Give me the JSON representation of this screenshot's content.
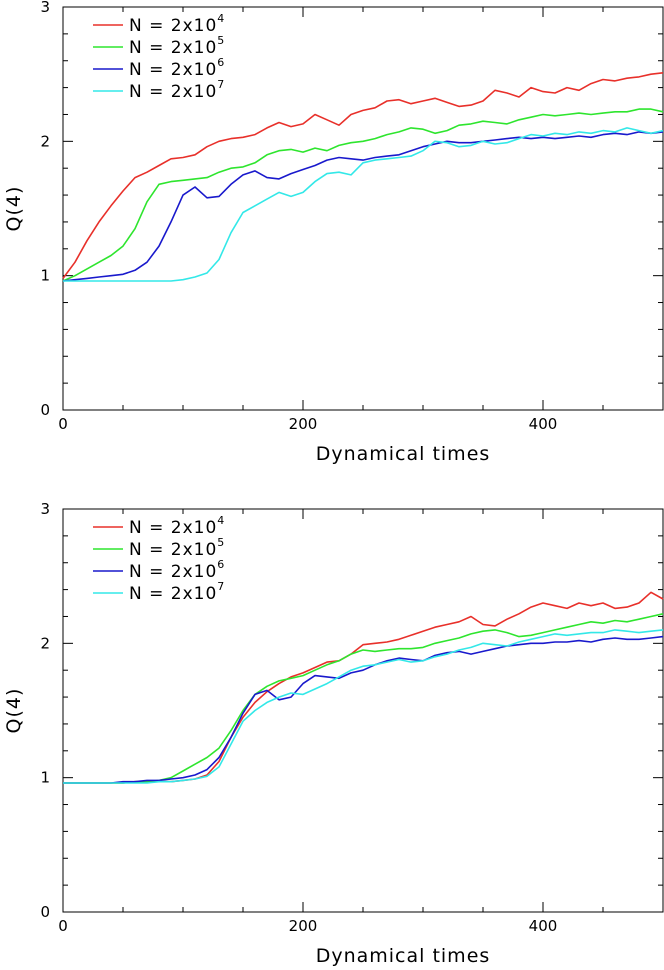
{
  "chart_data": [
    {
      "type": "line",
      "xlabel": "Dynamical times",
      "ylabel": "Q(4)",
      "xlim": [
        0,
        500
      ],
      "ylim": [
        0,
        3
      ],
      "x_ticks": [
        "0",
        "200",
        "400"
      ],
      "y_ticks": [
        "0",
        "1",
        "2",
        "3"
      ],
      "grid": false,
      "legend_position": "top-left",
      "series": [
        {
          "name": "N = 2x10^4",
          "label_base": "N = 2x10",
          "label_exp": "4",
          "color": "#e8302a",
          "x": [
            0,
            10,
            20,
            30,
            40,
            50,
            60,
            70,
            80,
            90,
            100,
            110,
            120,
            130,
            140,
            150,
            160,
            170,
            180,
            190,
            200,
            210,
            220,
            230,
            240,
            250,
            260,
            270,
            280,
            290,
            300,
            310,
            320,
            330,
            340,
            350,
            360,
            370,
            380,
            390,
            400,
            410,
            420,
            430,
            440,
            450,
            460,
            470,
            480,
            490,
            500
          ],
          "y": [
            0.98,
            1.1,
            1.26,
            1.4,
            1.52,
            1.63,
            1.73,
            1.77,
            1.82,
            1.87,
            1.88,
            1.9,
            1.96,
            2.0,
            2.02,
            2.03,
            2.05,
            2.1,
            2.14,
            2.11,
            2.13,
            2.2,
            2.16,
            2.12,
            2.2,
            2.23,
            2.25,
            2.3,
            2.31,
            2.28,
            2.3,
            2.32,
            2.29,
            2.26,
            2.27,
            2.3,
            2.38,
            2.36,
            2.33,
            2.4,
            2.37,
            2.36,
            2.4,
            2.38,
            2.43,
            2.46,
            2.45,
            2.47,
            2.48,
            2.5,
            2.51
          ]
        },
        {
          "name": "N = 2x10^5",
          "label_base": "N = 2x10",
          "label_exp": "5",
          "color": "#2ee52e",
          "x": [
            0,
            10,
            20,
            30,
            40,
            50,
            60,
            70,
            80,
            90,
            100,
            110,
            120,
            130,
            140,
            150,
            160,
            170,
            180,
            190,
            200,
            210,
            220,
            230,
            240,
            250,
            260,
            270,
            280,
            290,
            300,
            310,
            320,
            330,
            340,
            350,
            360,
            370,
            380,
            390,
            400,
            410,
            420,
            430,
            440,
            450,
            460,
            470,
            480,
            490,
            500
          ],
          "y": [
            0.96,
            1.0,
            1.05,
            1.1,
            1.15,
            1.22,
            1.35,
            1.55,
            1.68,
            1.7,
            1.71,
            1.72,
            1.73,
            1.77,
            1.8,
            1.81,
            1.84,
            1.9,
            1.93,
            1.94,
            1.92,
            1.95,
            1.93,
            1.97,
            1.99,
            2.0,
            2.02,
            2.05,
            2.07,
            2.1,
            2.09,
            2.06,
            2.08,
            2.12,
            2.13,
            2.15,
            2.14,
            2.13,
            2.16,
            2.18,
            2.2,
            2.19,
            2.2,
            2.21,
            2.2,
            2.21,
            2.22,
            2.22,
            2.24,
            2.24,
            2.22
          ]
        },
        {
          "name": "N = 2x10^6",
          "label_base": "N = 2x10",
          "label_exp": "6",
          "color": "#1919cc",
          "x": [
            0,
            10,
            20,
            30,
            40,
            50,
            60,
            70,
            80,
            90,
            100,
            110,
            120,
            130,
            140,
            150,
            160,
            170,
            180,
            190,
            200,
            210,
            220,
            230,
            240,
            250,
            260,
            270,
            280,
            290,
            300,
            310,
            320,
            330,
            340,
            350,
            360,
            370,
            380,
            390,
            400,
            410,
            420,
            430,
            440,
            450,
            460,
            470,
            480,
            490,
            500
          ],
          "y": [
            0.96,
            0.97,
            0.98,
            0.99,
            1.0,
            1.01,
            1.04,
            1.1,
            1.22,
            1.4,
            1.6,
            1.66,
            1.58,
            1.59,
            1.68,
            1.75,
            1.78,
            1.73,
            1.72,
            1.76,
            1.79,
            1.82,
            1.86,
            1.88,
            1.87,
            1.86,
            1.88,
            1.89,
            1.9,
            1.93,
            1.96,
            1.98,
            2.0,
            1.99,
            1.99,
            2.0,
            2.01,
            2.02,
            2.03,
            2.02,
            2.03,
            2.02,
            2.03,
            2.04,
            2.03,
            2.05,
            2.06,
            2.05,
            2.07,
            2.06,
            2.07
          ]
        },
        {
          "name": "N = 2x10^7",
          "label_base": "N = 2x10",
          "label_exp": "7",
          "color": "#33e8e8",
          "x": [
            0,
            10,
            20,
            30,
            40,
            50,
            60,
            70,
            80,
            90,
            100,
            110,
            120,
            130,
            140,
            150,
            160,
            170,
            180,
            190,
            200,
            210,
            220,
            230,
            240,
            250,
            260,
            270,
            280,
            290,
            300,
            310,
            320,
            330,
            340,
            350,
            360,
            370,
            380,
            390,
            400,
            410,
            420,
            430,
            440,
            450,
            460,
            470,
            480,
            490,
            500
          ],
          "y": [
            0.96,
            0.96,
            0.96,
            0.96,
            0.96,
            0.96,
            0.96,
            0.96,
            0.96,
            0.96,
            0.97,
            0.99,
            1.02,
            1.12,
            1.32,
            1.47,
            1.52,
            1.57,
            1.62,
            1.59,
            1.62,
            1.7,
            1.76,
            1.77,
            1.75,
            1.84,
            1.86,
            1.87,
            1.88,
            1.89,
            1.93,
            2.0,
            1.99,
            1.96,
            1.97,
            2.0,
            1.98,
            1.99,
            2.02,
            2.05,
            2.04,
            2.06,
            2.05,
            2.07,
            2.06,
            2.08,
            2.07,
            2.1,
            2.08,
            2.06,
            2.08
          ]
        }
      ]
    },
    {
      "type": "line",
      "xlabel": "Dynamical times",
      "ylabel": "Q(4)",
      "xlim": [
        0,
        500
      ],
      "ylim": [
        0,
        3
      ],
      "x_ticks": [
        "0",
        "200",
        "400"
      ],
      "y_ticks": [
        "0",
        "1",
        "2",
        "3"
      ],
      "grid": false,
      "legend_position": "top-left",
      "series": [
        {
          "name": "N = 2x10^4",
          "label_base": "N = 2x10",
          "label_exp": "4",
          "color": "#e8302a",
          "x": [
            0,
            10,
            20,
            30,
            40,
            50,
            60,
            70,
            80,
            90,
            100,
            110,
            120,
            130,
            140,
            150,
            160,
            170,
            180,
            190,
            200,
            210,
            220,
            230,
            240,
            250,
            260,
            270,
            280,
            290,
            300,
            310,
            320,
            330,
            340,
            350,
            360,
            370,
            380,
            390,
            400,
            410,
            420,
            430,
            440,
            450,
            460,
            470,
            480,
            490,
            500
          ],
          "y": [
            0.96,
            0.96,
            0.96,
            0.96,
            0.96,
            0.96,
            0.97,
            0.97,
            0.97,
            0.97,
            0.98,
            0.99,
            1.02,
            1.12,
            1.3,
            1.45,
            1.56,
            1.64,
            1.7,
            1.75,
            1.78,
            1.82,
            1.86,
            1.87,
            1.92,
            1.99,
            2.0,
            2.01,
            2.03,
            2.06,
            2.09,
            2.12,
            2.14,
            2.16,
            2.2,
            2.14,
            2.13,
            2.18,
            2.22,
            2.27,
            2.3,
            2.28,
            2.26,
            2.3,
            2.28,
            2.3,
            2.26,
            2.27,
            2.3,
            2.38,
            2.33
          ]
        },
        {
          "name": "N = 2x10^5",
          "label_base": "N = 2x10",
          "label_exp": "5",
          "color": "#2ee52e",
          "x": [
            0,
            10,
            20,
            30,
            40,
            50,
            60,
            70,
            80,
            90,
            100,
            110,
            120,
            130,
            140,
            150,
            160,
            170,
            180,
            190,
            200,
            210,
            220,
            230,
            240,
            250,
            260,
            270,
            280,
            290,
            300,
            310,
            320,
            330,
            340,
            350,
            360,
            370,
            380,
            390,
            400,
            410,
            420,
            430,
            440,
            450,
            460,
            470,
            480,
            490,
            500
          ],
          "y": [
            0.96,
            0.96,
            0.96,
            0.96,
            0.96,
            0.96,
            0.97,
            0.97,
            0.98,
            1.0,
            1.05,
            1.1,
            1.15,
            1.22,
            1.35,
            1.5,
            1.62,
            1.68,
            1.72,
            1.74,
            1.76,
            1.8,
            1.84,
            1.87,
            1.92,
            1.95,
            1.94,
            1.95,
            1.96,
            1.96,
            1.97,
            2.0,
            2.02,
            2.04,
            2.07,
            2.09,
            2.1,
            2.08,
            2.05,
            2.06,
            2.08,
            2.1,
            2.12,
            2.14,
            2.16,
            2.15,
            2.17,
            2.16,
            2.18,
            2.2,
            2.22
          ]
        },
        {
          "name": "N = 2x10^6",
          "label_base": "N = 2x10",
          "label_exp": "6",
          "color": "#1919cc",
          "x": [
            0,
            10,
            20,
            30,
            40,
            50,
            60,
            70,
            80,
            90,
            100,
            110,
            120,
            130,
            140,
            150,
            160,
            170,
            180,
            190,
            200,
            210,
            220,
            230,
            240,
            250,
            260,
            270,
            280,
            290,
            300,
            310,
            320,
            330,
            340,
            350,
            360,
            370,
            380,
            390,
            400,
            410,
            420,
            430,
            440,
            450,
            460,
            470,
            480,
            490,
            500
          ],
          "y": [
            0.96,
            0.96,
            0.96,
            0.96,
            0.96,
            0.97,
            0.97,
            0.98,
            0.98,
            0.99,
            1.0,
            1.02,
            1.06,
            1.15,
            1.3,
            1.48,
            1.62,
            1.65,
            1.58,
            1.6,
            1.7,
            1.76,
            1.75,
            1.74,
            1.78,
            1.8,
            1.84,
            1.87,
            1.89,
            1.88,
            1.87,
            1.91,
            1.93,
            1.94,
            1.92,
            1.94,
            1.96,
            1.98,
            1.99,
            2.0,
            2.0,
            2.01,
            2.01,
            2.02,
            2.01,
            2.03,
            2.04,
            2.03,
            2.03,
            2.04,
            2.05
          ]
        },
        {
          "name": "N = 2x10^7",
          "label_base": "N = 2x10",
          "label_exp": "7",
          "color": "#33e8e8",
          "x": [
            0,
            10,
            20,
            30,
            40,
            50,
            60,
            70,
            80,
            90,
            100,
            110,
            120,
            130,
            140,
            150,
            160,
            170,
            180,
            190,
            200,
            210,
            220,
            230,
            240,
            250,
            260,
            270,
            280,
            290,
            300,
            310,
            320,
            330,
            340,
            350,
            360,
            370,
            380,
            390,
            400,
            410,
            420,
            430,
            440,
            450,
            460,
            470,
            480,
            490,
            500
          ],
          "y": [
            0.96,
            0.96,
            0.96,
            0.96,
            0.96,
            0.96,
            0.96,
            0.96,
            0.97,
            0.97,
            0.98,
            0.99,
            1.01,
            1.08,
            1.25,
            1.42,
            1.5,
            1.56,
            1.6,
            1.63,
            1.62,
            1.66,
            1.7,
            1.75,
            1.8,
            1.83,
            1.84,
            1.86,
            1.88,
            1.86,
            1.87,
            1.9,
            1.92,
            1.95,
            1.97,
            2.0,
            1.99,
            1.98,
            2.01,
            2.03,
            2.05,
            2.07,
            2.06,
            2.07,
            2.08,
            2.08,
            2.1,
            2.09,
            2.08,
            2.09,
            2.1
          ]
        }
      ]
    }
  ]
}
